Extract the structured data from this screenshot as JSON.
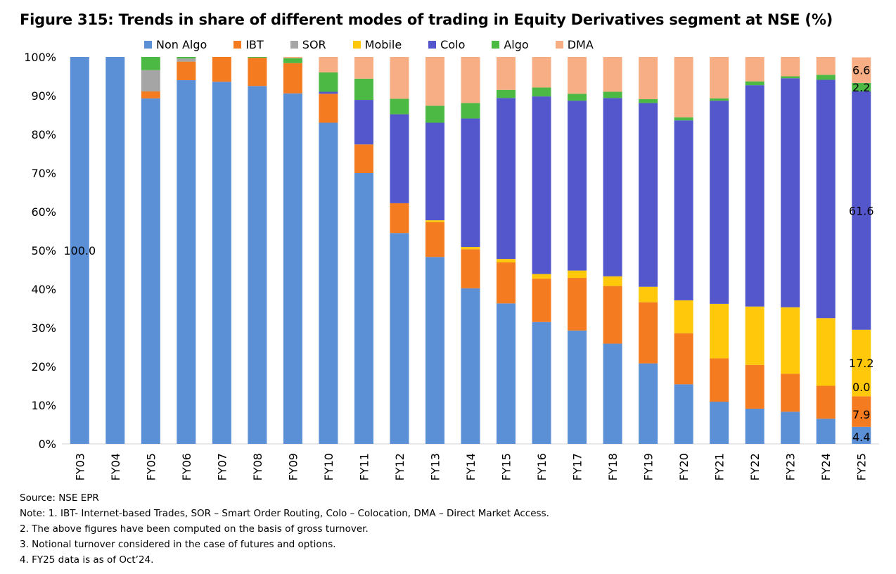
{
  "title": "Figure 315: Trends in share of different modes of trading in Equity Derivatives segment at NSE (%)",
  "chart_data": {
    "type": "bar",
    "stacked": true,
    "categories": [
      "FY03",
      "FY04",
      "FY05",
      "FY06",
      "FY07",
      "FY08",
      "FY09",
      "FY10",
      "FY11",
      "FY12",
      "FY13",
      "FY14",
      "FY15",
      "FY16",
      "FY17",
      "FY18",
      "FY19",
      "FY20",
      "FY21",
      "FY22",
      "FY23",
      "FY24",
      "FY25"
    ],
    "series": [
      {
        "name": "Non Algo",
        "color": "#5B8FD6",
        "values": [
          100.0,
          100.0,
          89.3,
          94.0,
          93.6,
          92.5,
          90.6,
          83.0,
          70.0,
          54.5,
          48.3,
          40.2,
          36.3,
          31.5,
          29.3,
          25.9,
          20.8,
          15.4,
          10.9,
          9.1,
          8.3,
          6.5,
          4.4
        ]
      },
      {
        "name": "IBT",
        "color": "#F47B20",
        "values": [
          0,
          0,
          1.8,
          4.8,
          6.4,
          7.3,
          7.8,
          7.5,
          7.4,
          7.7,
          9.0,
          10.1,
          10.6,
          11.2,
          13.6,
          14.9,
          15.8,
          13.2,
          11.2,
          11.3,
          9.8,
          8.5,
          7.9
        ]
      },
      {
        "name": "SOR",
        "color": "#A5A5A5",
        "values": [
          0,
          0,
          5.5,
          0.8,
          0,
          0,
          0,
          0,
          0,
          0,
          0,
          0,
          0,
          0,
          0,
          0,
          0,
          0,
          0,
          0,
          0,
          0,
          0.0
        ]
      },
      {
        "name": "Mobile",
        "color": "#FFC80A",
        "values": [
          0,
          0,
          0,
          0,
          0,
          0,
          0,
          0,
          0,
          0,
          0.5,
          0.6,
          0.9,
          1.2,
          1.9,
          2.5,
          4.0,
          8.5,
          14.1,
          15.1,
          17.2,
          17.5,
          17.2
        ]
      },
      {
        "name": "Colo",
        "color": "#5457CC",
        "values": [
          0,
          0,
          0,
          0,
          0,
          0,
          0,
          0.5,
          11.5,
          23.0,
          25.2,
          33.2,
          41.6,
          45.9,
          43.9,
          46.1,
          47.5,
          46.5,
          52.5,
          57.2,
          59.2,
          61.6,
          61.6
        ]
      },
      {
        "name": "Algo",
        "color": "#4CB944",
        "values": [
          0,
          0,
          3.4,
          0.4,
          0,
          0.2,
          1.3,
          5.0,
          5.5,
          4.0,
          4.4,
          4.0,
          2.1,
          2.3,
          1.8,
          1.6,
          1.0,
          0.8,
          0.6,
          1.0,
          0.5,
          1.3,
          2.2
        ]
      },
      {
        "name": "DMA",
        "color": "#F7AE84",
        "values": [
          0,
          0,
          0,
          0,
          0,
          0,
          0.3,
          4.0,
          5.6,
          10.8,
          12.6,
          11.9,
          8.5,
          7.9,
          9.5,
          9.0,
          10.9,
          15.6,
          10.7,
          6.3,
          5.0,
          4.6,
          6.6
        ]
      }
    ],
    "ylim": [
      0,
      100
    ],
    "y_ticks": [
      "0%",
      "10%",
      "20%",
      "30%",
      "40%",
      "50%",
      "60%",
      "70%",
      "80%",
      "90%",
      "100%"
    ],
    "grid": false,
    "legend": "top",
    "xlabel": "",
    "ylabel": "",
    "data_labels": [
      {
        "category": "FY03",
        "series": "Non Algo",
        "text": "100.0"
      },
      {
        "category": "FY25",
        "series": "Non Algo",
        "text": "4.4"
      },
      {
        "category": "FY25",
        "series": "IBT",
        "text": "7.9"
      },
      {
        "category": "FY25",
        "series": "SOR",
        "text": "0.0"
      },
      {
        "category": "FY25",
        "series": "Mobile",
        "text": "17.2"
      },
      {
        "category": "FY25",
        "series": "Colo",
        "text": "61.6"
      },
      {
        "category": "FY25",
        "series": "Algo",
        "text": "2.2"
      },
      {
        "category": "FY25",
        "series": "DMA",
        "text": "6.6"
      }
    ]
  },
  "notes": [
    "Source: NSE EPR",
    "Note: 1. IBT- Internet-based Trades, SOR – Smart Order Routing, Colo – Colocation, DMA – Direct Market Access.",
    "2. The above figures have been computed on the basis of gross turnover.",
    "3. Notional turnover considered in the case of futures and options.",
    "4. FY25 data is as of Oct’24."
  ]
}
